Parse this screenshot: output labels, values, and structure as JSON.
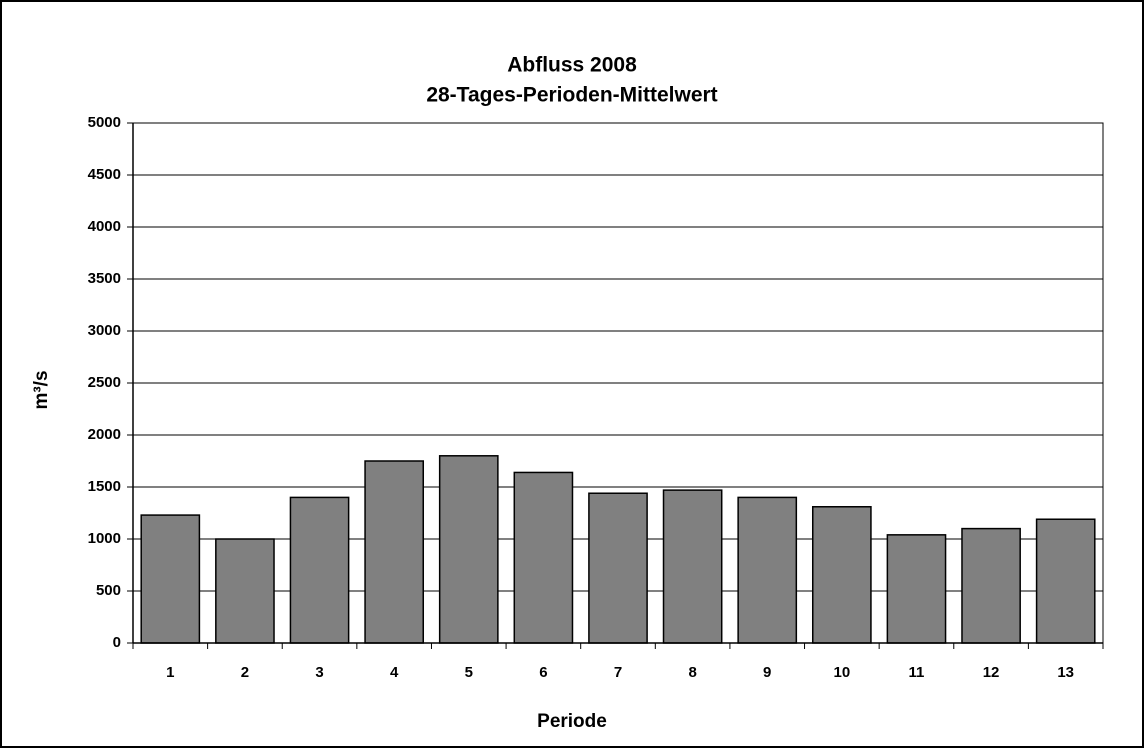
{
  "chart_data": {
    "type": "bar",
    "title": "Abfluss 2008",
    "subtitle": "28-Tages-Perioden-Mittelwert",
    "x_label": "Periode",
    "y_label": "m³/s",
    "categories": [
      "1",
      "2",
      "3",
      "4",
      "5",
      "6",
      "7",
      "8",
      "9",
      "10",
      "11",
      "12",
      "13"
    ],
    "values": [
      1230,
      1000,
      1400,
      1750,
      1800,
      1640,
      1440,
      1470,
      1400,
      1310,
      1040,
      1100,
      1190
    ],
    "color": "#808080",
    "ylim": [
      0,
      5000
    ],
    "yticks": [
      0,
      500,
      1000,
      1500,
      2000,
      2500,
      3000,
      3500,
      4000,
      4500,
      5000
    ],
    "grid": true
  }
}
